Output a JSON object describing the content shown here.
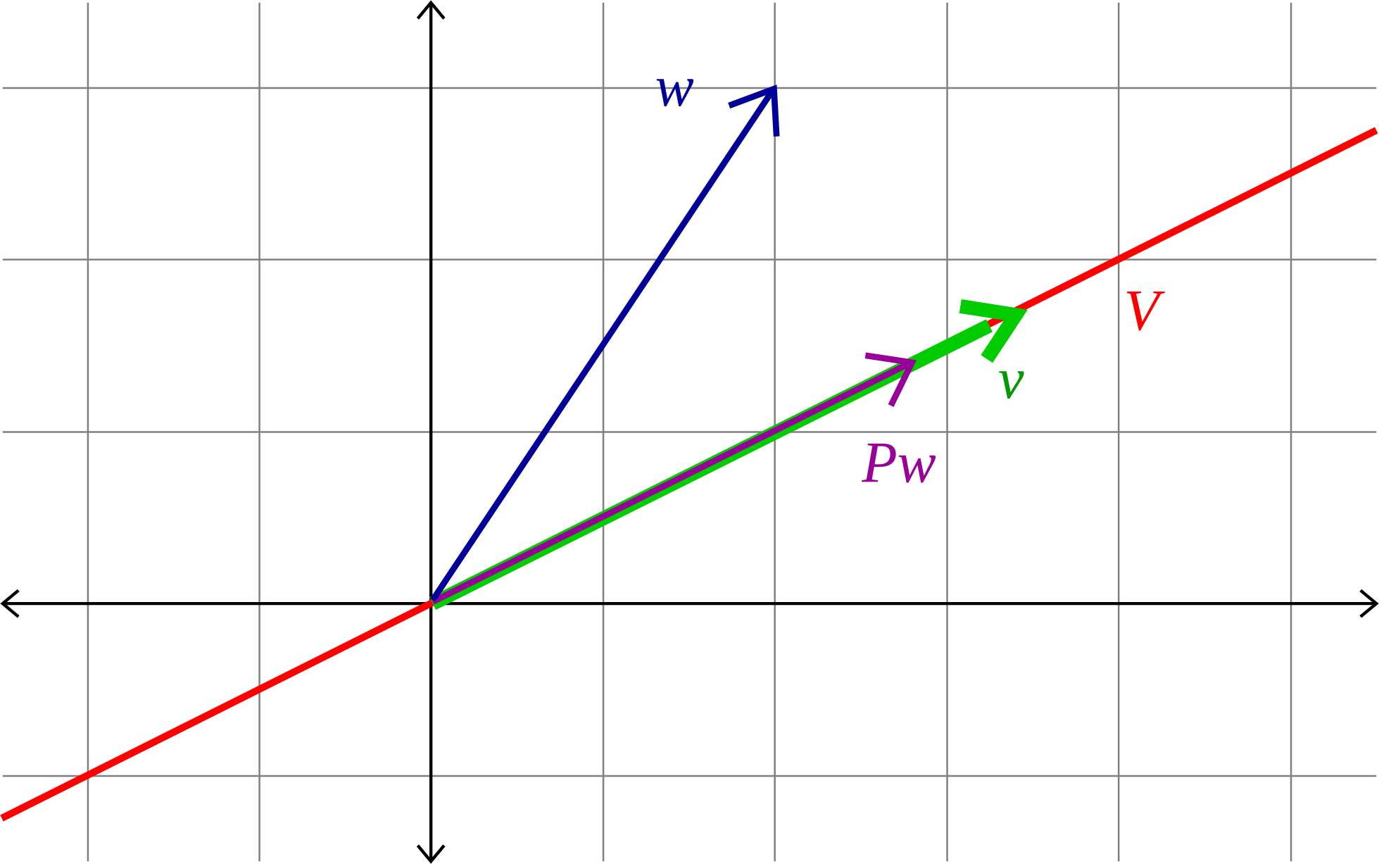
{
  "labels": {
    "w": "w",
    "v": "v",
    "projection": "Pw",
    "subspace": "V"
  }
}
